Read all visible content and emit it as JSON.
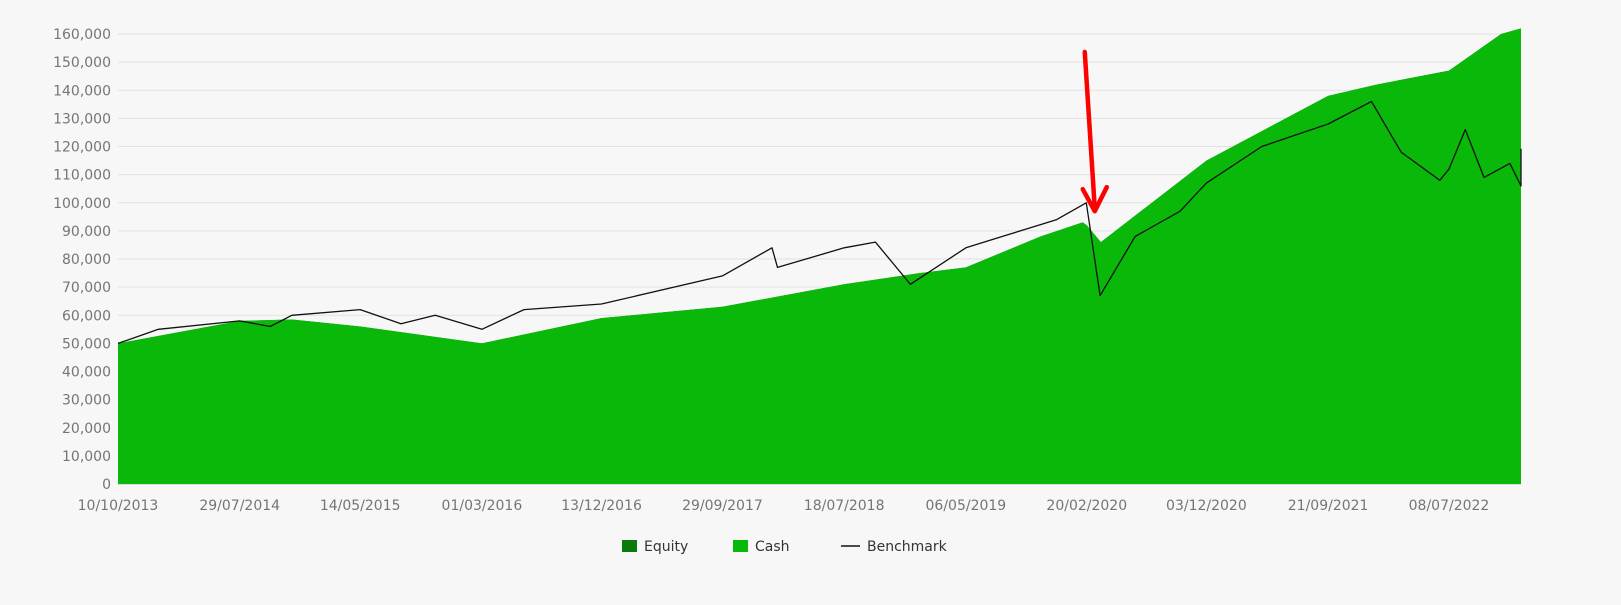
{
  "chart_data": {
    "type": "area",
    "title": "",
    "xlabel": "",
    "ylabel": "",
    "ylim": [
      0,
      160000
    ],
    "yticks": [
      0,
      10000,
      20000,
      30000,
      40000,
      50000,
      60000,
      70000,
      80000,
      90000,
      100000,
      110000,
      120000,
      130000,
      140000,
      150000,
      160000
    ],
    "ytick_labels": [
      "0",
      "10,000",
      "20,000",
      "30,000",
      "40,000",
      "50,000",
      "60,000",
      "70,000",
      "80,000",
      "90,000",
      "100,000",
      "110,000",
      "120,000",
      "130,000",
      "140,000",
      "150,000",
      "160,000"
    ],
    "xticks": [
      "10/10/2013",
      "29/07/2014",
      "14/05/2015",
      "01/03/2016",
      "13/12/2016",
      "29/09/2017",
      "18/07/2018",
      "06/05/2019",
      "20/02/2020",
      "03/12/2020",
      "21/09/2021",
      "08/07/2022"
    ],
    "grid": "horizontal",
    "legend_position": "bottom-center",
    "series": [
      {
        "name": "Equity",
        "kind": "area",
        "color": "#0a7a0a",
        "points": [
          [
            "10/10/2013",
            50000
          ],
          [
            "29/07/2014",
            58000
          ],
          [
            "01/12/2014",
            58500
          ],
          [
            "14/05/2015",
            56000
          ],
          [
            "01/03/2016",
            50000
          ],
          [
            "13/12/2016",
            59000
          ],
          [
            "29/09/2017",
            63000
          ],
          [
            "18/07/2018",
            71000
          ],
          [
            "15/01/2019",
            75000
          ],
          [
            "06/05/2019",
            77000
          ],
          [
            "01/11/2019",
            88000
          ],
          [
            "10/02/2020",
            93000
          ],
          [
            "20/02/2020",
            92000
          ],
          [
            "25/03/2020",
            86000
          ],
          [
            "03/12/2020",
            115000
          ],
          [
            "21/09/2021",
            138000
          ],
          [
            "15/01/2022",
            142000
          ],
          [
            "08/07/2022",
            147000
          ],
          [
            "10/11/2022",
            160000
          ],
          [
            "20/02/2023",
            162000
          ]
        ]
      },
      {
        "name": "Cash",
        "kind": "area",
        "color": "#0ab80a",
        "points": [
          [
            "10/10/2013",
            50000
          ],
          [
            "29/07/2014",
            58000
          ],
          [
            "01/12/2014",
            58500
          ],
          [
            "14/05/2015",
            56000
          ],
          [
            "01/03/2016",
            50000
          ],
          [
            "13/12/2016",
            59000
          ],
          [
            "29/09/2017",
            63000
          ],
          [
            "18/07/2018",
            71000
          ],
          [
            "15/01/2019",
            75000
          ],
          [
            "06/05/2019",
            77000
          ],
          [
            "01/11/2019",
            88000
          ],
          [
            "10/02/2020",
            93000
          ],
          [
            "20/02/2020",
            92000
          ],
          [
            "25/03/2020",
            86000
          ],
          [
            "03/12/2020",
            115000
          ],
          [
            "21/09/2021",
            138000
          ],
          [
            "15/01/2022",
            142000
          ],
          [
            "08/07/2022",
            147000
          ],
          [
            "10/11/2022",
            160000
          ],
          [
            "20/02/2023",
            162000
          ]
        ]
      },
      {
        "name": "Benchmark",
        "kind": "line",
        "color": "#111111",
        "points": [
          [
            "10/10/2013",
            50000
          ],
          [
            "15/01/2014",
            55000
          ],
          [
            "29/07/2014",
            58000
          ],
          [
            "10/10/2014",
            56000
          ],
          [
            "01/12/2014",
            60000
          ],
          [
            "14/05/2015",
            62000
          ],
          [
            "20/08/2015",
            57000
          ],
          [
            "10/11/2015",
            60000
          ],
          [
            "01/03/2016",
            55000
          ],
          [
            "10/06/2016",
            62000
          ],
          [
            "13/12/2016",
            64000
          ],
          [
            "29/09/2017",
            74000
          ],
          [
            "26/01/2018",
            84000
          ],
          [
            "08/02/2018",
            77000
          ],
          [
            "18/07/2018",
            84000
          ],
          [
            "01/10/2018",
            86000
          ],
          [
            "24/12/2018",
            71000
          ],
          [
            "06/05/2019",
            84000
          ],
          [
            "01/08/2019",
            88000
          ],
          [
            "10/12/2019",
            94000
          ],
          [
            "19/02/2020",
            100000
          ],
          [
            "23/03/2020",
            67000
          ],
          [
            "15/06/2020",
            88000
          ],
          [
            "01/10/2020",
            97000
          ],
          [
            "03/12/2020",
            107000
          ],
          [
            "15/04/2021",
            120000
          ],
          [
            "21/09/2021",
            128000
          ],
          [
            "03/01/2022",
            136000
          ],
          [
            "15/03/2022",
            118000
          ],
          [
            "16/06/2022",
            108000
          ],
          [
            "08/07/2022",
            112000
          ],
          [
            "16/08/2022",
            126000
          ],
          [
            "30/09/2022",
            109000
          ],
          [
            "01/12/2022",
            114000
          ],
          [
            "28/12/2022",
            106000
          ],
          [
            "01/02/2023",
            119000
          ],
          [
            "20/02/2023",
            113000
          ]
        ]
      }
    ],
    "annotation": {
      "kind": "arrow",
      "color": "#ff0000",
      "points_to": [
        "20/02/2020",
        97000
      ]
    }
  }
}
